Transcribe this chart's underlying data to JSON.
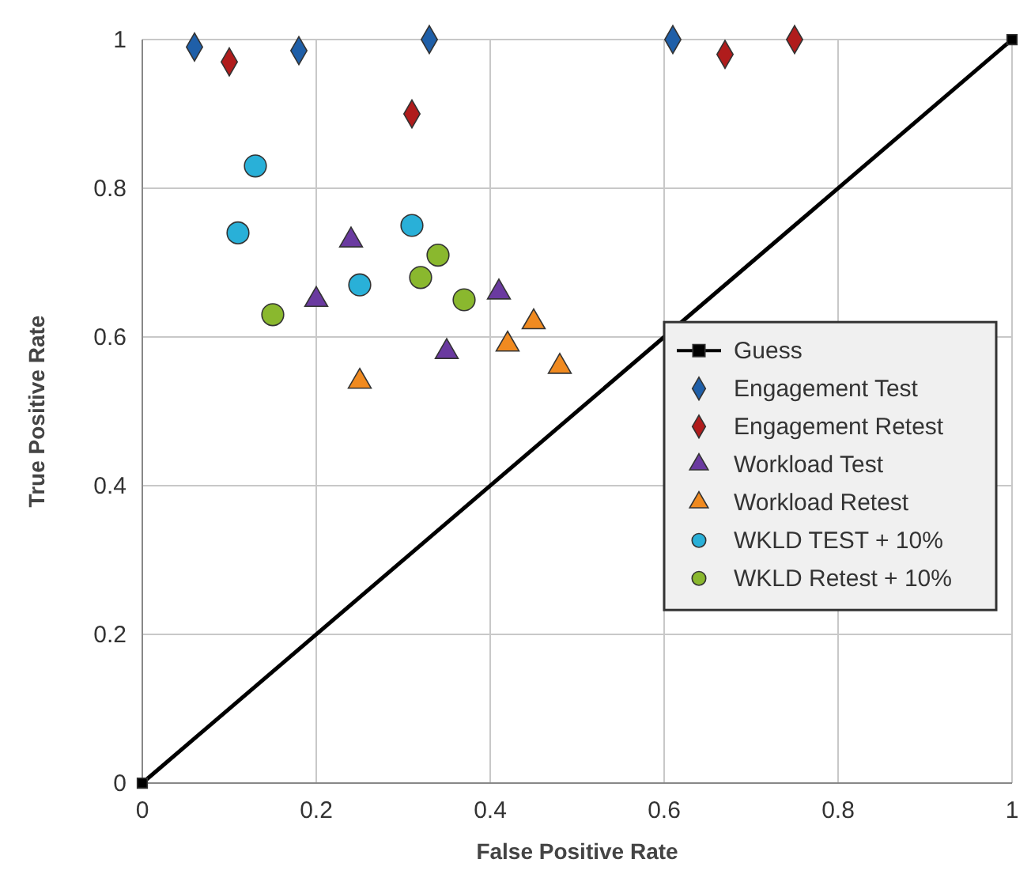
{
  "chart_data": {
    "type": "scatter",
    "xlabel": "False Positive Rate",
    "ylabel": "True Positive Rate",
    "xlim": [
      0,
      1
    ],
    "ylim": [
      0,
      1
    ],
    "xticks": [
      0,
      0.2,
      0.4,
      0.6,
      0.8,
      1
    ],
    "yticks": [
      0,
      0.2,
      0.4,
      0.6,
      0.8,
      1
    ],
    "grid": true,
    "legend": "right",
    "series": [
      {
        "name": "Guess",
        "type": "line",
        "marker": "square",
        "color": "#000000",
        "x": [
          0,
          1
        ],
        "values": [
          0,
          1
        ]
      },
      {
        "name": "Engagement Test",
        "marker": "diamond",
        "color": "#1f5fa8",
        "x": [
          0.06,
          0.18,
          0.33,
          0.61
        ],
        "values": [
          0.99,
          0.985,
          1.0,
          1.0
        ]
      },
      {
        "name": "Engagement Retest",
        "marker": "diamond",
        "color": "#b01c1c",
        "x": [
          0.1,
          0.31,
          0.67,
          0.75
        ],
        "values": [
          0.97,
          0.9,
          0.98,
          1.0
        ]
      },
      {
        "name": "Workload Test",
        "marker": "triangle",
        "color": "#6a3aa0",
        "x": [
          0.24,
          0.2,
          0.35,
          0.41
        ],
        "values": [
          0.73,
          0.65,
          0.58,
          0.66
        ]
      },
      {
        "name": "Workload Retest",
        "marker": "triangle",
        "color": "#f08a20",
        "x": [
          0.25,
          0.42,
          0.45,
          0.48
        ],
        "values": [
          0.54,
          0.59,
          0.62,
          0.56
        ]
      },
      {
        "name": "WKLD TEST + 10%",
        "marker": "circle",
        "color": "#29b0d8",
        "x": [
          0.13,
          0.11,
          0.31,
          0.25
        ],
        "values": [
          0.83,
          0.74,
          0.75,
          0.67
        ]
      },
      {
        "name": "WKLD Retest + 10%",
        "marker": "circle",
        "color": "#8ab82e",
        "x": [
          0.15,
          0.32,
          0.34,
          0.37
        ],
        "values": [
          0.63,
          0.68,
          0.71,
          0.65
        ]
      }
    ]
  }
}
